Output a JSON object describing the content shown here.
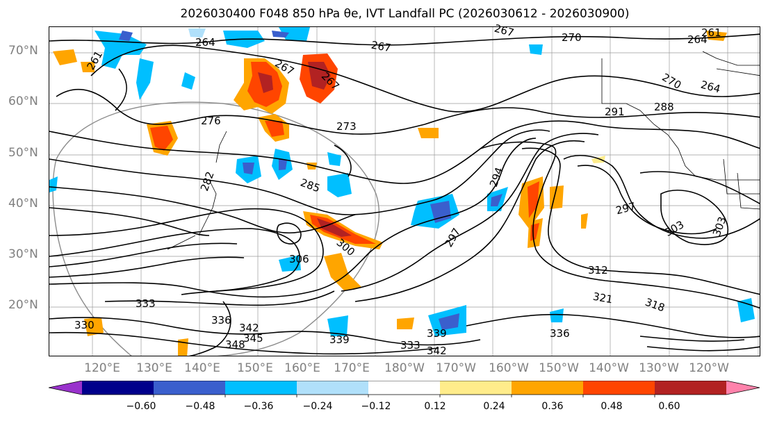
{
  "title": "2026030400 F048 850 hPa θe, IVT Landfall PC (2026030612 - 2026030900)",
  "lat_labels": [
    "70°N",
    "60°N",
    "50°N",
    "40°N",
    "30°N",
    "20°N"
  ],
  "lon_labels": [
    "120°E",
    "130°E",
    "140°E",
    "150°E",
    "160°E",
    "170°E",
    "180°W",
    "170°W",
    "160°W",
    "150°W",
    "140°W",
    "130°W",
    "120°W"
  ],
  "contour_labels": [
    "261",
    "264",
    "267",
    "267",
    "267",
    "270",
    "267",
    "261",
    "264",
    "264",
    "270",
    "276",
    "273",
    "288",
    "291",
    "282",
    "285",
    "294",
    "297",
    "297",
    "303",
    "303",
    "300",
    "306",
    "312",
    "321",
    "318",
    "333",
    "336",
    "330",
    "342",
    "345",
    "348",
    "339",
    "333",
    "342",
    "336",
    "339"
  ],
  "colorbar": {
    "ticks": [
      "−0.60",
      "−0.48",
      "−0.36",
      "−0.24",
      "−0.12",
      "0.12",
      "0.24",
      "0.36",
      "0.48",
      "0.60"
    ],
    "colors": [
      "#9932cc",
      "#00008b",
      "#3a5fcd",
      "#00bfff",
      "#b0e0fa",
      "#ffffff",
      "#ffec8b",
      "#ffa500",
      "#ff4500",
      "#b22222",
      "#ff82ab"
    ]
  }
}
